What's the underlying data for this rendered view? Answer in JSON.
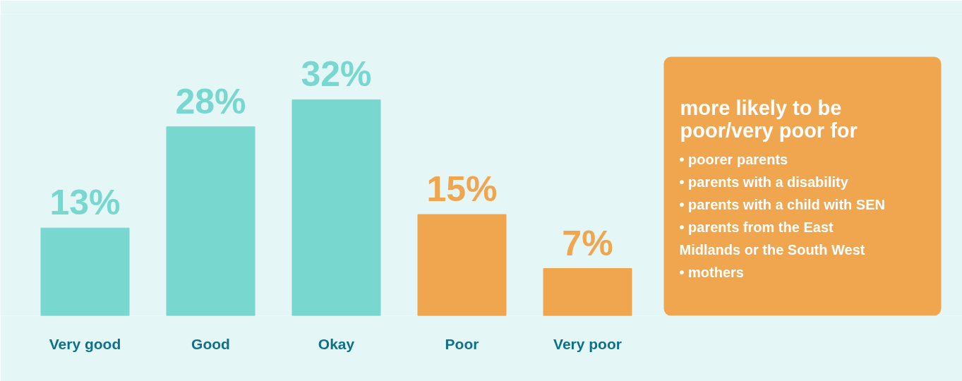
{
  "chart_data": {
    "type": "bar",
    "categories": [
      "Very good",
      "Good",
      "Okay",
      "Poor",
      "Very poor"
    ],
    "values": [
      13,
      28,
      32,
      15,
      7
    ],
    "colors": [
      "#78d8cf",
      "#78d8cf",
      "#78d8cf",
      "#f0a54f",
      "#f0a54f"
    ],
    "value_labels": [
      "13%",
      "28%",
      "32%",
      "15%",
      "7%"
    ],
    "annotations": [
      "more likely to be poor/very poor for",
      "• poorer parents",
      "• parents with a disability",
      "• parents with a child with SEN",
      "• parents from the East Midlands or the South West",
      "• mothers"
    ],
    "grid": false
  }
}
